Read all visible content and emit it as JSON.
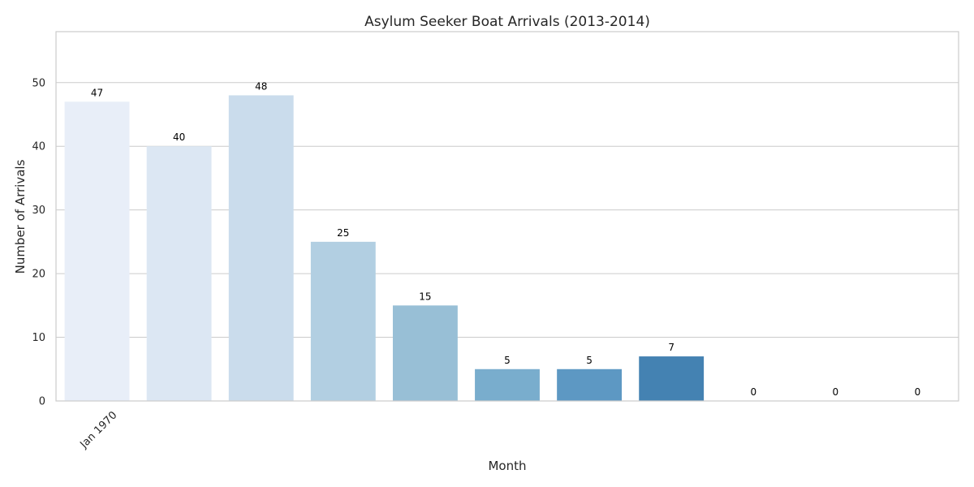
{
  "chart_data": {
    "type": "bar",
    "title": "Asylum Seeker Boat Arrivals (2013-2014)",
    "xlabel": "Month",
    "ylabel": "Number of Arrivals",
    "x_tick_labels": [
      "Jan 1970",
      "",
      "",
      "",
      "",
      "",
      "",
      "",
      "",
      "",
      ""
    ],
    "values": [
      47,
      40,
      48,
      25,
      15,
      5,
      5,
      7,
      0,
      0,
      0
    ],
    "colors": [
      "#e8eef8",
      "#dce7f3",
      "#cadcec",
      "#b2cfe2",
      "#98bfd6",
      "#79adcd",
      "#5d98c3",
      "#4482b2",
      "#326fa6",
      "#2a5f93",
      "#214f84"
    ],
    "yticks": [
      0,
      10,
      20,
      30,
      40,
      50
    ],
    "ylim": [
      0,
      58
    ],
    "grid": "horizontal",
    "legend": "none"
  }
}
